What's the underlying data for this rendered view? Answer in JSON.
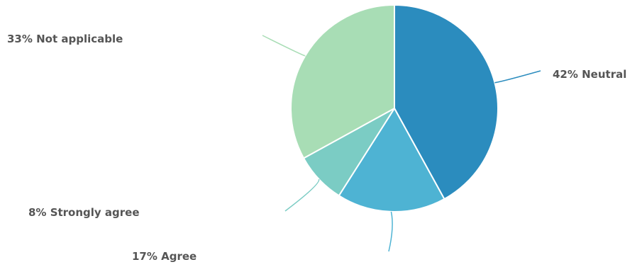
{
  "chart_data": {
    "type": "pie",
    "title": "",
    "start_angle_deg": 0,
    "direction": "clockwise",
    "slices": [
      {
        "label": "42% Neutral",
        "value": 42,
        "color": "#2b8cbe"
      },
      {
        "label": "17% Agree",
        "value": 17,
        "color": "#4eb3d3"
      },
      {
        "label": "8% Strongly agree",
        "value": 8,
        "color": "#7bccc4"
      },
      {
        "label": "33% Not applicable",
        "value": 33,
        "color": "#a8ddb5"
      }
    ]
  }
}
